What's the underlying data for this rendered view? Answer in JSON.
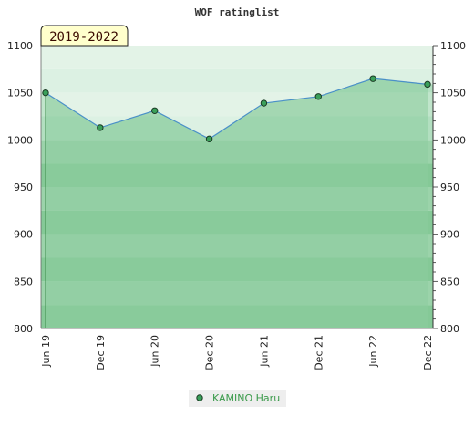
{
  "chart_data": {
    "type": "area",
    "title": "WOF ratinglist",
    "period_label": "2019-2022",
    "categories": [
      "Jun 19",
      "Dec 19",
      "Jun 20",
      "Dec 20",
      "Jun 21",
      "Dec 21",
      "Jun 22",
      "Dec 22"
    ],
    "series": [
      {
        "name": "KAMINO Haru",
        "values": [
          1050,
          1013,
          1031,
          1001,
          1039,
          1046,
          1065,
          1059
        ]
      }
    ],
    "ylim": [
      800,
      1100
    ],
    "y_ticks": [
      800,
      850,
      900,
      950,
      1000,
      1050,
      1100
    ],
    "grid": true,
    "legend_position": "bottom-center",
    "colors": {
      "line": "#4a90c8",
      "fill": "#8dcc9f",
      "marker": "#3aa05a",
      "upper_band": "#b2dfc0",
      "lower_band": "#85c997"
    }
  }
}
